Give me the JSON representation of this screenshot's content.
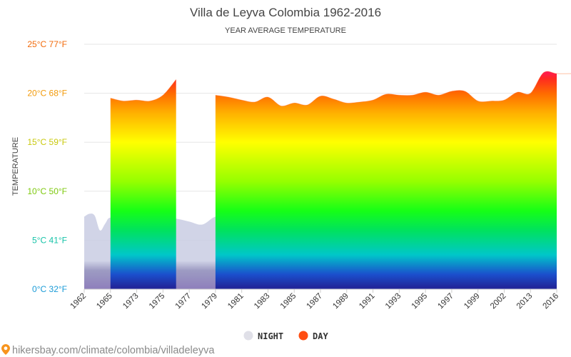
{
  "chart_data": {
    "type": "area",
    "title": "Villa de Leyva Colombia 1962-2016",
    "subtitle": "YEAR AVERAGE TEMPERATURE",
    "ylabel": "TEMPERATURE",
    "ylim": [
      0,
      25
    ],
    "y_ticks": [
      {
        "value": 0,
        "label": "0°C 32°F",
        "color": "#1a9bd7"
      },
      {
        "value": 5,
        "label": "5°C 41°F",
        "color": "#17c3a8"
      },
      {
        "value": 10,
        "label": "10°C 50°F",
        "color": "#7ec90e"
      },
      {
        "value": 15,
        "label": "15°C 59°F",
        "color": "#c9c90e"
      },
      {
        "value": 20,
        "label": "20°C 68°F",
        "color": "#f29a0a"
      },
      {
        "value": 25,
        "label": "25°C 77°F",
        "color": "#f26a0a"
      }
    ],
    "x_labels": [
      "1962",
      "1965",
      "1973",
      "1975",
      "1977",
      "1979",
      "1981",
      "1983",
      "1985",
      "1987",
      "1989",
      "1991",
      "1993",
      "1995",
      "1997",
      "1999",
      "2002",
      "2013",
      "2016"
    ],
    "grid": true,
    "legend_position": "bottom",
    "series": [
      {
        "name": "NIGHT",
        "color": "#c5cbe0",
        "legend_color": "#e0e0e8",
        "points": [
          [
            0,
            7.4
          ],
          [
            0.2,
            7.7
          ],
          [
            0.4,
            7.5
          ],
          [
            0.6,
            6.0
          ],
          [
            0.8,
            6.7
          ],
          [
            1.0,
            7.3
          ],
          [
            1.5,
            6.7
          ],
          [
            2.0,
            6.8
          ],
          [
            2.5,
            7.1
          ],
          [
            3.0,
            7.3
          ],
          [
            3.5,
            7.2
          ],
          [
            4.0,
            6.9
          ],
          [
            4.5,
            6.6
          ],
          [
            5.0,
            7.4
          ],
          [
            5.5,
            7.2
          ],
          [
            6.0,
            7.3
          ],
          [
            6.5,
            8.0
          ],
          [
            7.0,
            7.6
          ],
          [
            7.5,
            7.2
          ],
          [
            8.0,
            6.6
          ],
          [
            8.5,
            7.4
          ],
          [
            9.0,
            7.4
          ],
          [
            9.5,
            7.3
          ],
          [
            10.0,
            6.9
          ],
          [
            10.5,
            7.8
          ],
          [
            11.0,
            7.9
          ],
          [
            11.5,
            7.4
          ],
          [
            12.0,
            8.0
          ],
          [
            12.5,
            7.9
          ],
          [
            13.0,
            6.8
          ],
          [
            13.5,
            7.0
          ],
          [
            14.0,
            7.4
          ],
          [
            14.5,
            8.5
          ],
          [
            15.0,
            8.6
          ]
        ]
      },
      {
        "name": "DAY",
        "color": "#ff5000",
        "legend_color": "#ff4e12",
        "segments": [
          [
            [
              1.0,
              19.5
            ],
            [
              1.5,
              19.2
            ],
            [
              2.0,
              19.3
            ],
            [
              2.5,
              19.2
            ],
            [
              3.0,
              19.8
            ],
            [
              3.5,
              21.4
            ]
          ],
          [
            [
              5.0,
              19.8
            ],
            [
              5.5,
              19.6
            ],
            [
              6.0,
              19.3
            ],
            [
              6.5,
              19.1
            ],
            [
              7.0,
              19.6
            ],
            [
              7.5,
              18.7
            ],
            [
              8.0,
              19.0
            ],
            [
              8.5,
              18.8
            ],
            [
              9.0,
              19.7
            ],
            [
              9.5,
              19.4
            ],
            [
              10.0,
              19.0
            ],
            [
              10.5,
              19.1
            ],
            [
              11.0,
              19.3
            ],
            [
              11.5,
              19.9
            ],
            [
              12.0,
              19.8
            ],
            [
              12.5,
              19.8
            ],
            [
              13.0,
              20.1
            ],
            [
              13.5,
              19.8
            ],
            [
              14.0,
              20.2
            ],
            [
              14.5,
              20.2
            ],
            [
              15.0,
              19.2
            ],
            [
              15.5,
              19.2
            ],
            [
              16.0,
              19.3
            ],
            [
              16.5,
              20.1
            ],
            [
              17.0,
              20.0
            ],
            [
              17.5,
              22.1
            ],
            [
              18.0,
              22.0
            ],
            [
              18.5,
              22.0
            ],
            [
              19.0,
              22.0
            ]
          ]
        ]
      }
    ],
    "rainbow_stops": [
      {
        "value": 0.2,
        "color": "#21269a"
      },
      {
        "value": 1.5,
        "color": "#1b4fcc"
      },
      {
        "value": 3.5,
        "color": "#00c7c9"
      },
      {
        "value": 6.0,
        "color": "#00e25e"
      },
      {
        "value": 8.0,
        "color": "#16ff16"
      },
      {
        "value": 11.0,
        "color": "#96ff00"
      },
      {
        "value": 15.0,
        "color": "#ffff00"
      },
      {
        "value": 18.0,
        "color": "#ffb000"
      },
      {
        "value": 20.0,
        "color": "#ff6a00"
      },
      {
        "value": 21.5,
        "color": "#ff2a20"
      },
      {
        "value": 22.5,
        "color": "#ff1070"
      }
    ]
  },
  "legend": {
    "night_label": "NIGHT",
    "day_label": "DAY"
  },
  "source": {
    "text": "hikersbay.com/climate/colombia/villadeleyva",
    "icon": "location-pin-icon"
  }
}
